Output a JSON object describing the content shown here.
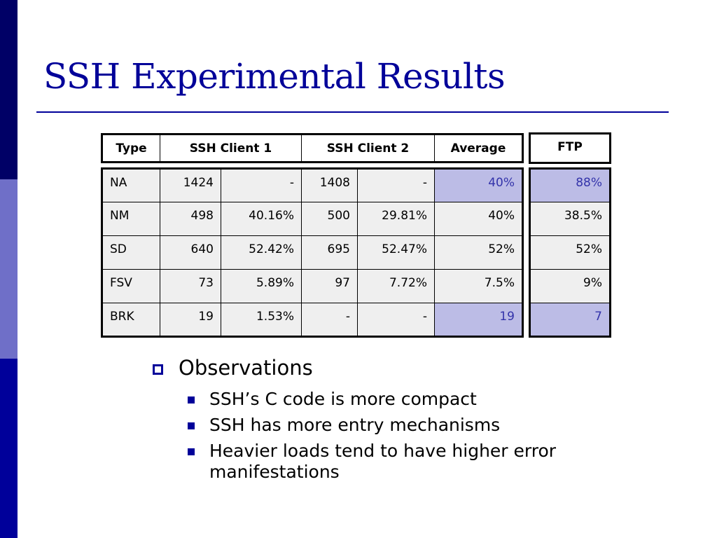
{
  "slide": {
    "title": "SSH Experimental Results"
  },
  "table": {
    "headers": [
      "Type",
      "SSH Client 1",
      "SSH Client 2",
      "Average"
    ],
    "ftp_header": "FTP",
    "rows": [
      {
        "type": "NA",
        "c1_count": "1424",
        "c1_pct": "-",
        "c2_count": "1408",
        "c2_pct": "-",
        "average": "40%",
        "ftp": "88%"
      },
      {
        "type": "NM",
        "c1_count": "498",
        "c1_pct": "40.16%",
        "c2_count": "500",
        "c2_pct": "29.81%",
        "average": "40%",
        "ftp": "38.5%"
      },
      {
        "type": "SD",
        "c1_count": "640",
        "c1_pct": "52.42%",
        "c2_count": "695",
        "c2_pct": "52.47%",
        "average": "52%",
        "ftp": "52%"
      },
      {
        "type": "FSV",
        "c1_count": "73",
        "c1_pct": "5.89%",
        "c2_count": "97",
        "c2_pct": "7.72%",
        "average": "7.5%",
        "ftp": "9%"
      },
      {
        "type": "BRK",
        "c1_count": "19",
        "c1_pct": "1.53%",
        "c2_count": "-",
        "c2_pct": "-",
        "average": "19",
        "ftp": "7"
      }
    ]
  },
  "observations": {
    "heading": "Observations",
    "items": [
      "SSH’s C code is more compact",
      "SSH has more entry mechanisms",
      "Heavier loads tend to have higher error manifestations"
    ]
  },
  "colors": {
    "title": "#000099",
    "highlight_cell": "#bcbce6",
    "cell_bg": "#efefef"
  }
}
